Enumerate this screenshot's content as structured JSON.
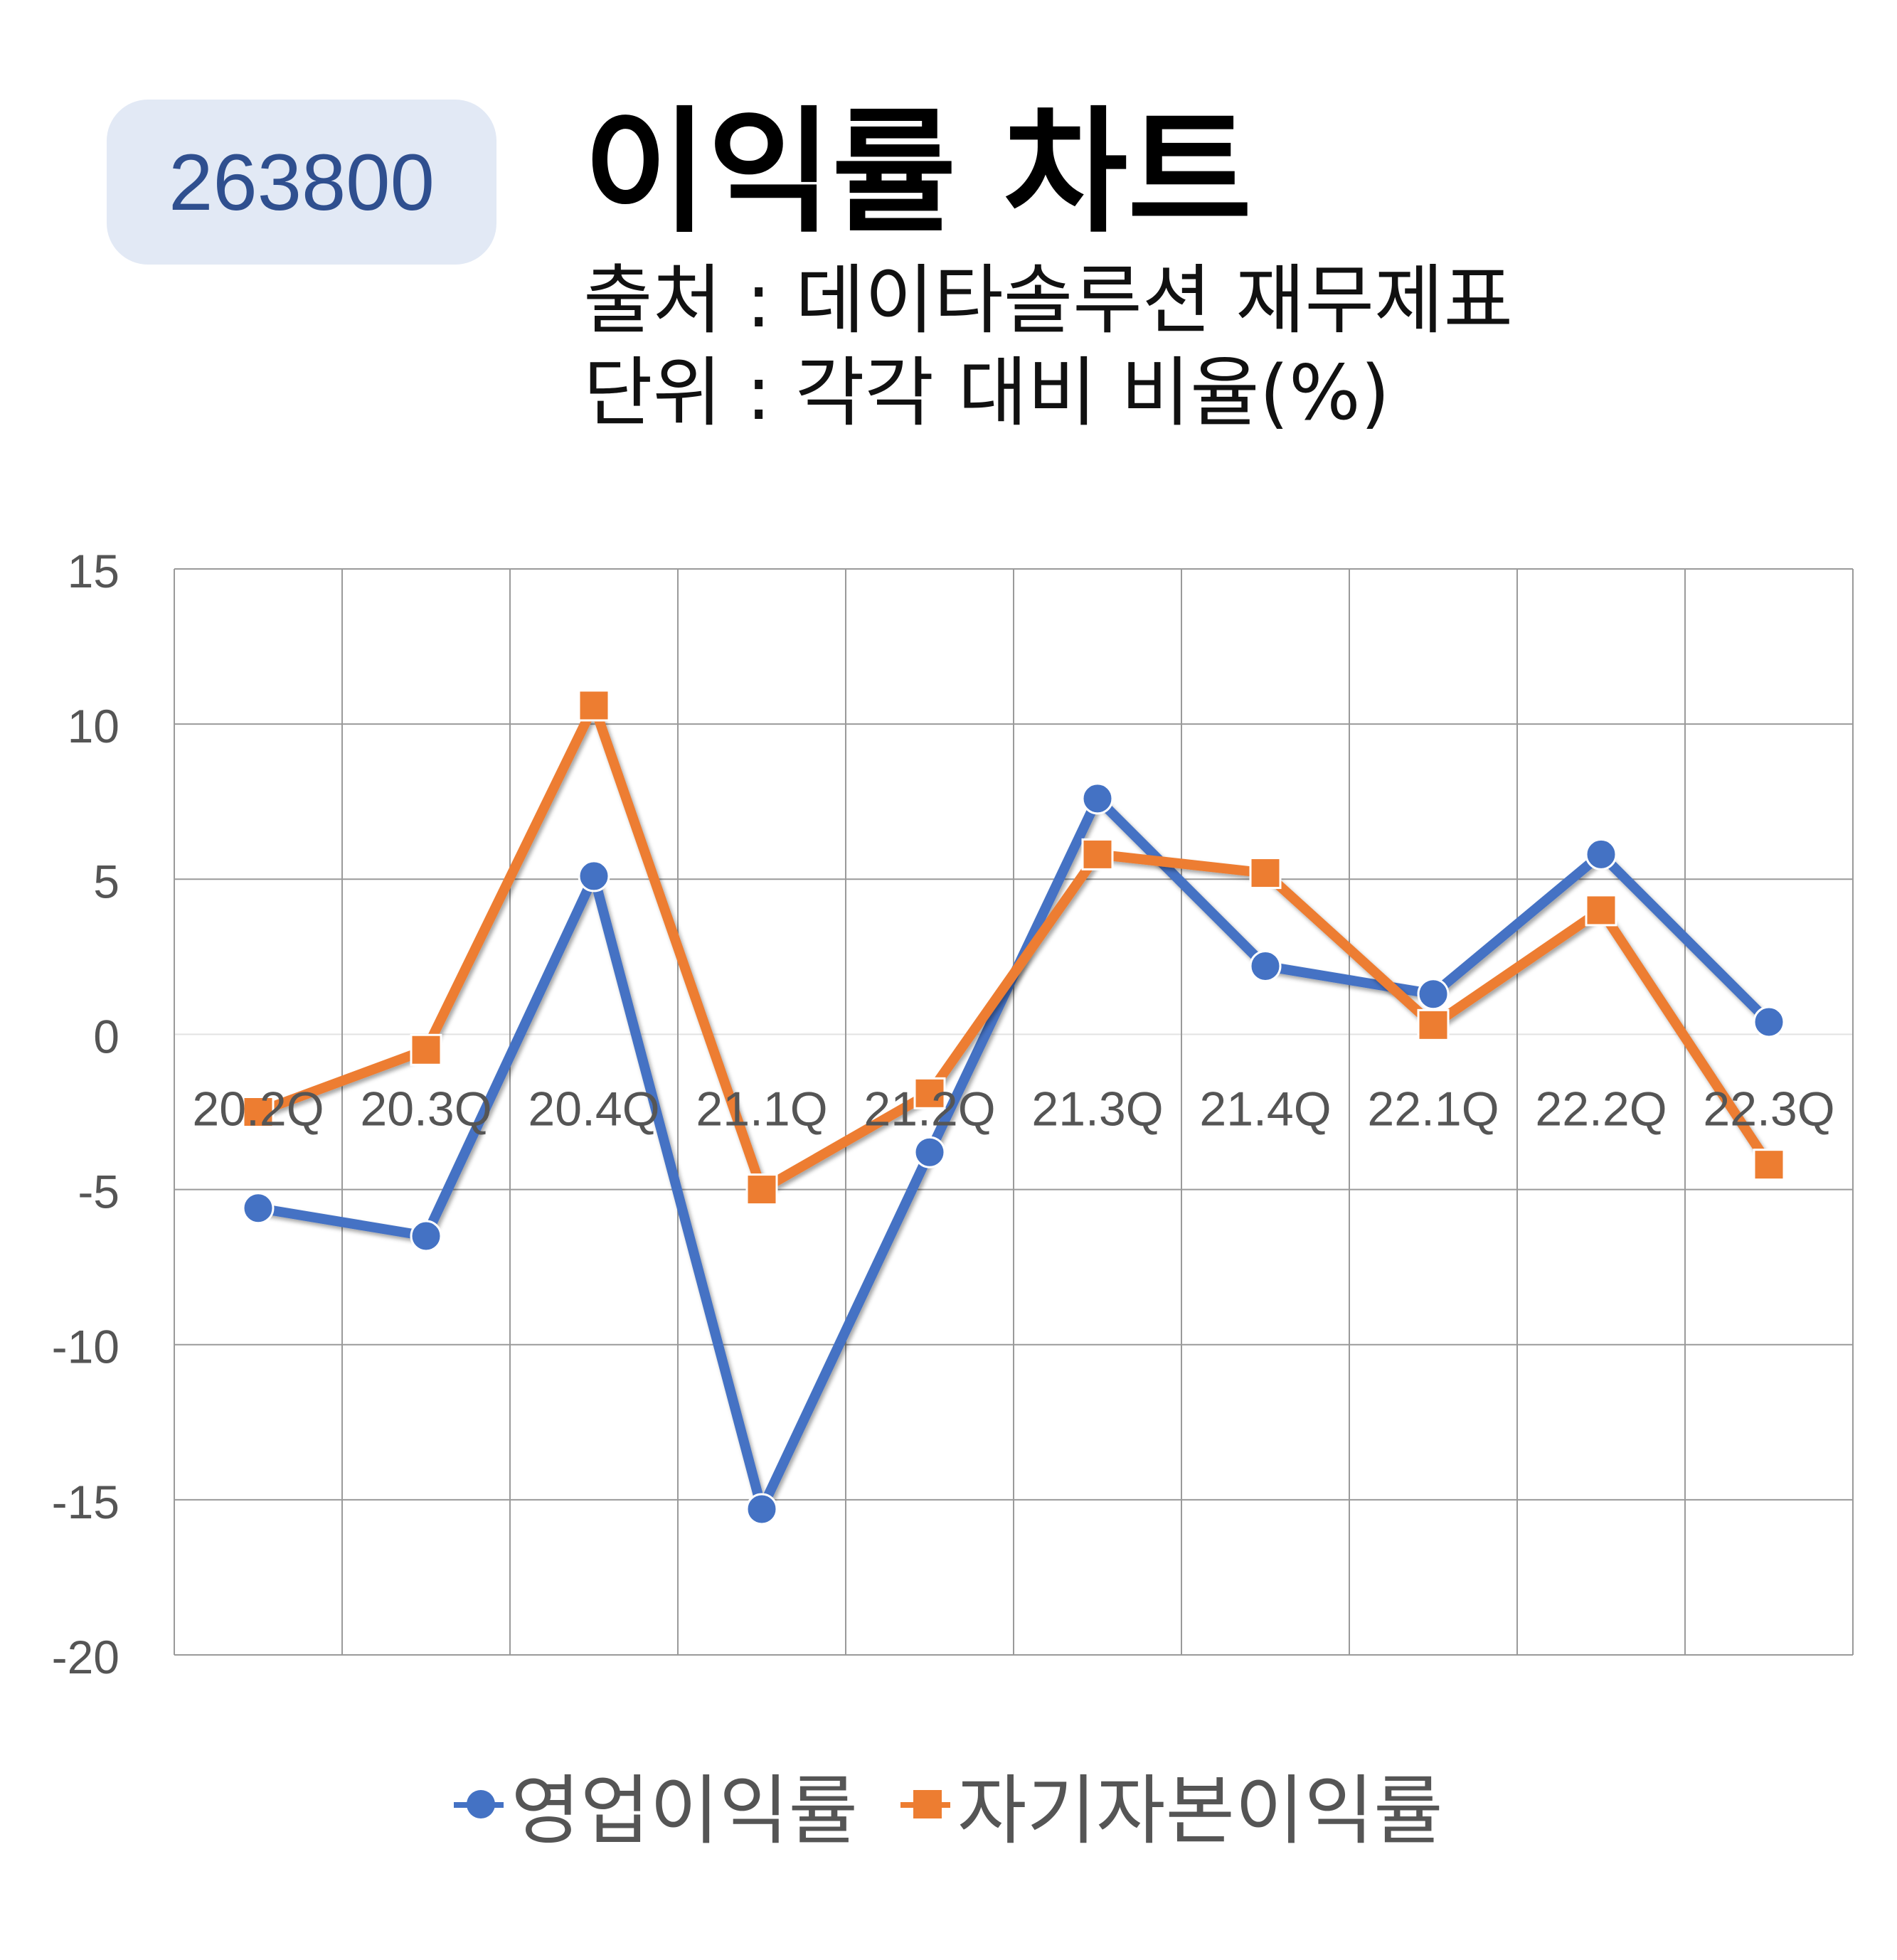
{
  "header": {
    "code": "263800",
    "title": "이익률 차트",
    "source_line": "출처 : 데이타솔루션 재무제표",
    "unit_line": "단위 : 각각 대비 비율(%)"
  },
  "colors": {
    "series1": "#4472c4",
    "series2": "#ed7d31",
    "grid": "#9a9a9a",
    "zero_line": "#e3e3e3",
    "axis_text": "#555555"
  },
  "chart_data": {
    "type": "line",
    "title": "이익률 차트",
    "categories": [
      "20.2Q",
      "20.3Q",
      "20.4Q",
      "21.1Q",
      "21.2Q",
      "21.3Q",
      "21.4Q",
      "22.1Q",
      "22.2Q",
      "22.3Q"
    ],
    "series": [
      {
        "name": "영업이익률",
        "marker": "circle",
        "values": [
          -5.6,
          -6.5,
          5.1,
          -15.3,
          -3.8,
          7.6,
          2.2,
          1.3,
          5.8,
          0.4
        ]
      },
      {
        "name": "자기자본이익률",
        "marker": "square",
        "values": [
          -2.5,
          -0.5,
          10.6,
          -5.0,
          -1.9,
          5.8,
          5.2,
          0.3,
          4.0,
          -4.2
        ]
      }
    ],
    "yticks": [
      15,
      10,
      5,
      0,
      -5,
      -10,
      -15,
      -20
    ],
    "ylim": [
      -20,
      15
    ],
    "xlabel": "",
    "ylabel": "",
    "grid": true,
    "legend": "bottom"
  }
}
